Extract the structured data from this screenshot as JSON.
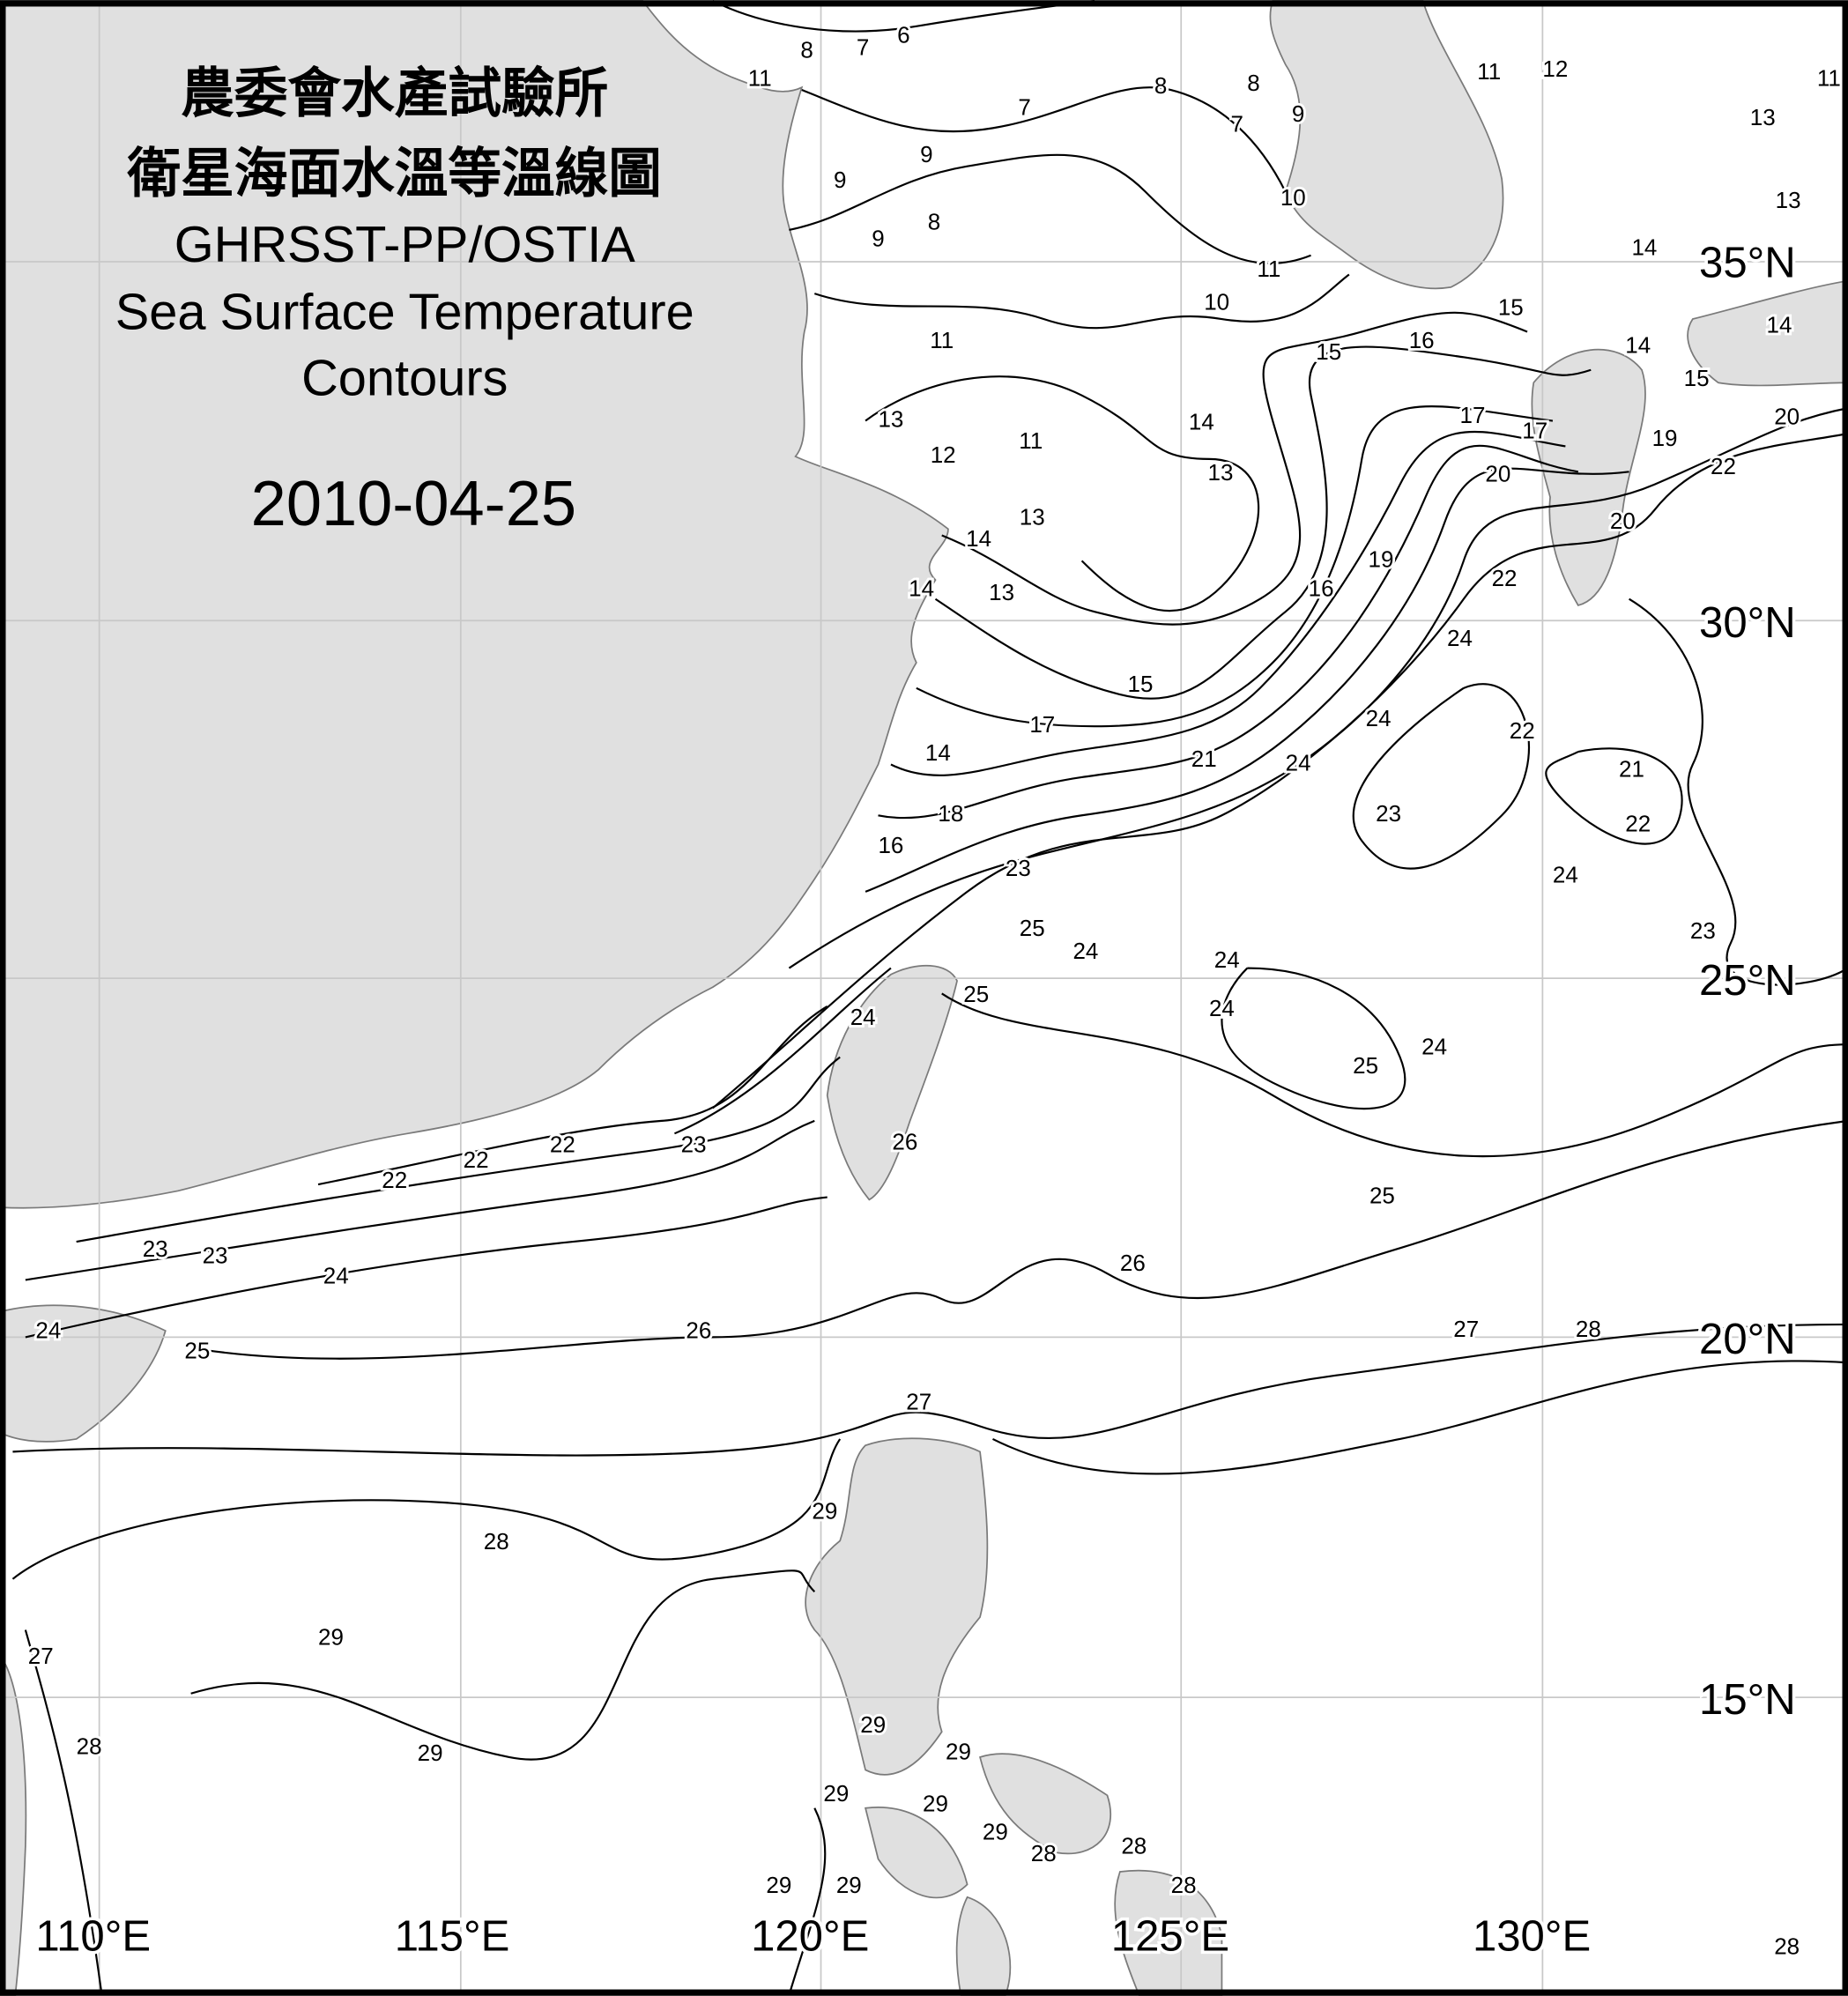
{
  "title": {
    "line1": "農委會水產試驗所",
    "line2": "衛星海面水溫等溫線圖",
    "line3": "GHRSST-PP/OSTIA",
    "line4": "Sea Surface Temperature",
    "line5": "Contours",
    "date": "2010-04-25"
  },
  "longitude_labels": [
    "110°E",
    "115°E",
    "120°E",
    "125°E",
    "130°E"
  ],
  "latitude_labels": [
    "35°N",
    "30°N",
    "25°N",
    "20°N",
    "15°N"
  ],
  "contour_labels": [
    "6",
    "7",
    "8",
    "11",
    "8",
    "8",
    "7",
    "7",
    "9",
    "9",
    "9",
    "10",
    "8",
    "9",
    "11",
    "12",
    "13",
    "13",
    "11",
    "14",
    "10",
    "11",
    "15",
    "11",
    "16",
    "15",
    "14",
    "15",
    "14",
    "13",
    "11",
    "12",
    "14",
    "13",
    "17",
    "17",
    "20",
    "19",
    "20",
    "22",
    "13",
    "14",
    "20",
    "19",
    "22",
    "14",
    "13",
    "16",
    "24",
    "15",
    "17",
    "24",
    "22",
    "14",
    "21",
    "24",
    "21",
    "18",
    "23",
    "22",
    "16",
    "24",
    "23",
    "25",
    "24",
    "23",
    "24",
    "25",
    "24",
    "24",
    "24",
    "25",
    "26",
    "23",
    "22",
    "22",
    "22",
    "25",
    "23",
    "23",
    "24",
    "26",
    "24",
    "26",
    "27",
    "28",
    "25",
    "27",
    "29",
    "28",
    "29",
    "27",
    "28",
    "29",
    "29",
    "29",
    "29",
    "29",
    "29",
    "28",
    "28",
    "29",
    "28",
    "29",
    "28"
  ],
  "colors": {
    "land": "#e0e0e0",
    "sea": "#ffffff",
    "contour": "#000000",
    "grid": "#c8c8c8"
  }
}
